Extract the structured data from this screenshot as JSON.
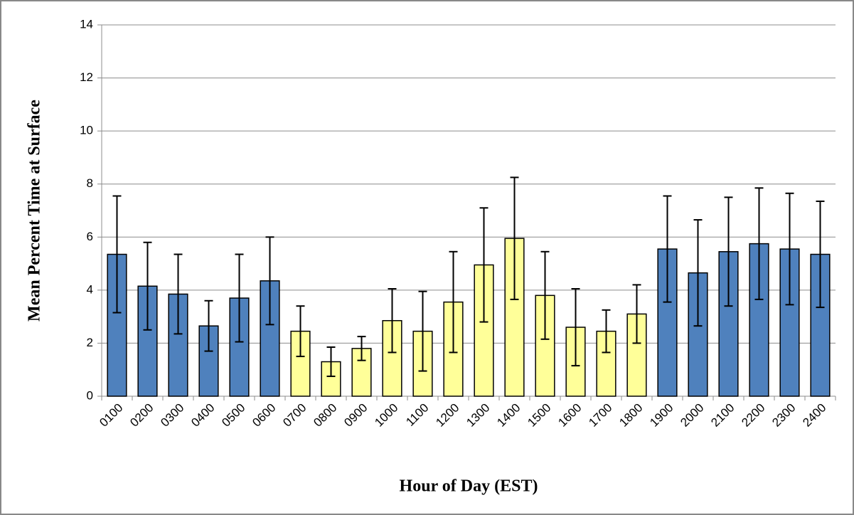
{
  "chart_data": {
    "type": "bar",
    "x_label": "Hour of Day (EST)",
    "y_label": "Mean Percent Time at Surface",
    "categories": [
      "0100",
      "0200",
      "0300",
      "0400",
      "0500",
      "0600",
      "0700",
      "0800",
      "0900",
      "1000",
      "1100",
      "1200",
      "1300",
      "1400",
      "1500",
      "1600",
      "1700",
      "1800",
      "1900",
      "2000",
      "2100",
      "2200",
      "2300",
      "2400"
    ],
    "values": [
      5.35,
      4.15,
      3.85,
      2.65,
      3.7,
      4.35,
      2.45,
      1.3,
      1.8,
      2.85,
      2.45,
      3.55,
      4.95,
      5.95,
      3.8,
      2.6,
      2.45,
      3.1,
      5.55,
      4.65,
      5.45,
      5.75,
      5.55,
      5.35
    ],
    "errors": [
      2.2,
      1.65,
      1.5,
      0.95,
      1.65,
      1.65,
      0.95,
      0.55,
      0.45,
      1.2,
      1.5,
      1.9,
      2.15,
      2.3,
      1.65,
      1.45,
      0.8,
      1.1,
      2.0,
      2.0,
      2.05,
      2.1,
      2.1,
      2.0
    ],
    "colors": [
      "#4f81bd",
      "#4f81bd",
      "#4f81bd",
      "#4f81bd",
      "#4f81bd",
      "#4f81bd",
      "#ffff99",
      "#ffff99",
      "#ffff99",
      "#ffff99",
      "#ffff99",
      "#ffff99",
      "#ffff99",
      "#ffff99",
      "#ffff99",
      "#ffff99",
      "#ffff99",
      "#ffff99",
      "#4f81bd",
      "#4f81bd",
      "#4f81bd",
      "#4f81bd",
      "#4f81bd",
      "#4f81bd"
    ],
    "ylim": [
      0,
      14
    ],
    "yticks": [
      0,
      2,
      4,
      6,
      8,
      10,
      12,
      14
    ],
    "grid": true
  }
}
